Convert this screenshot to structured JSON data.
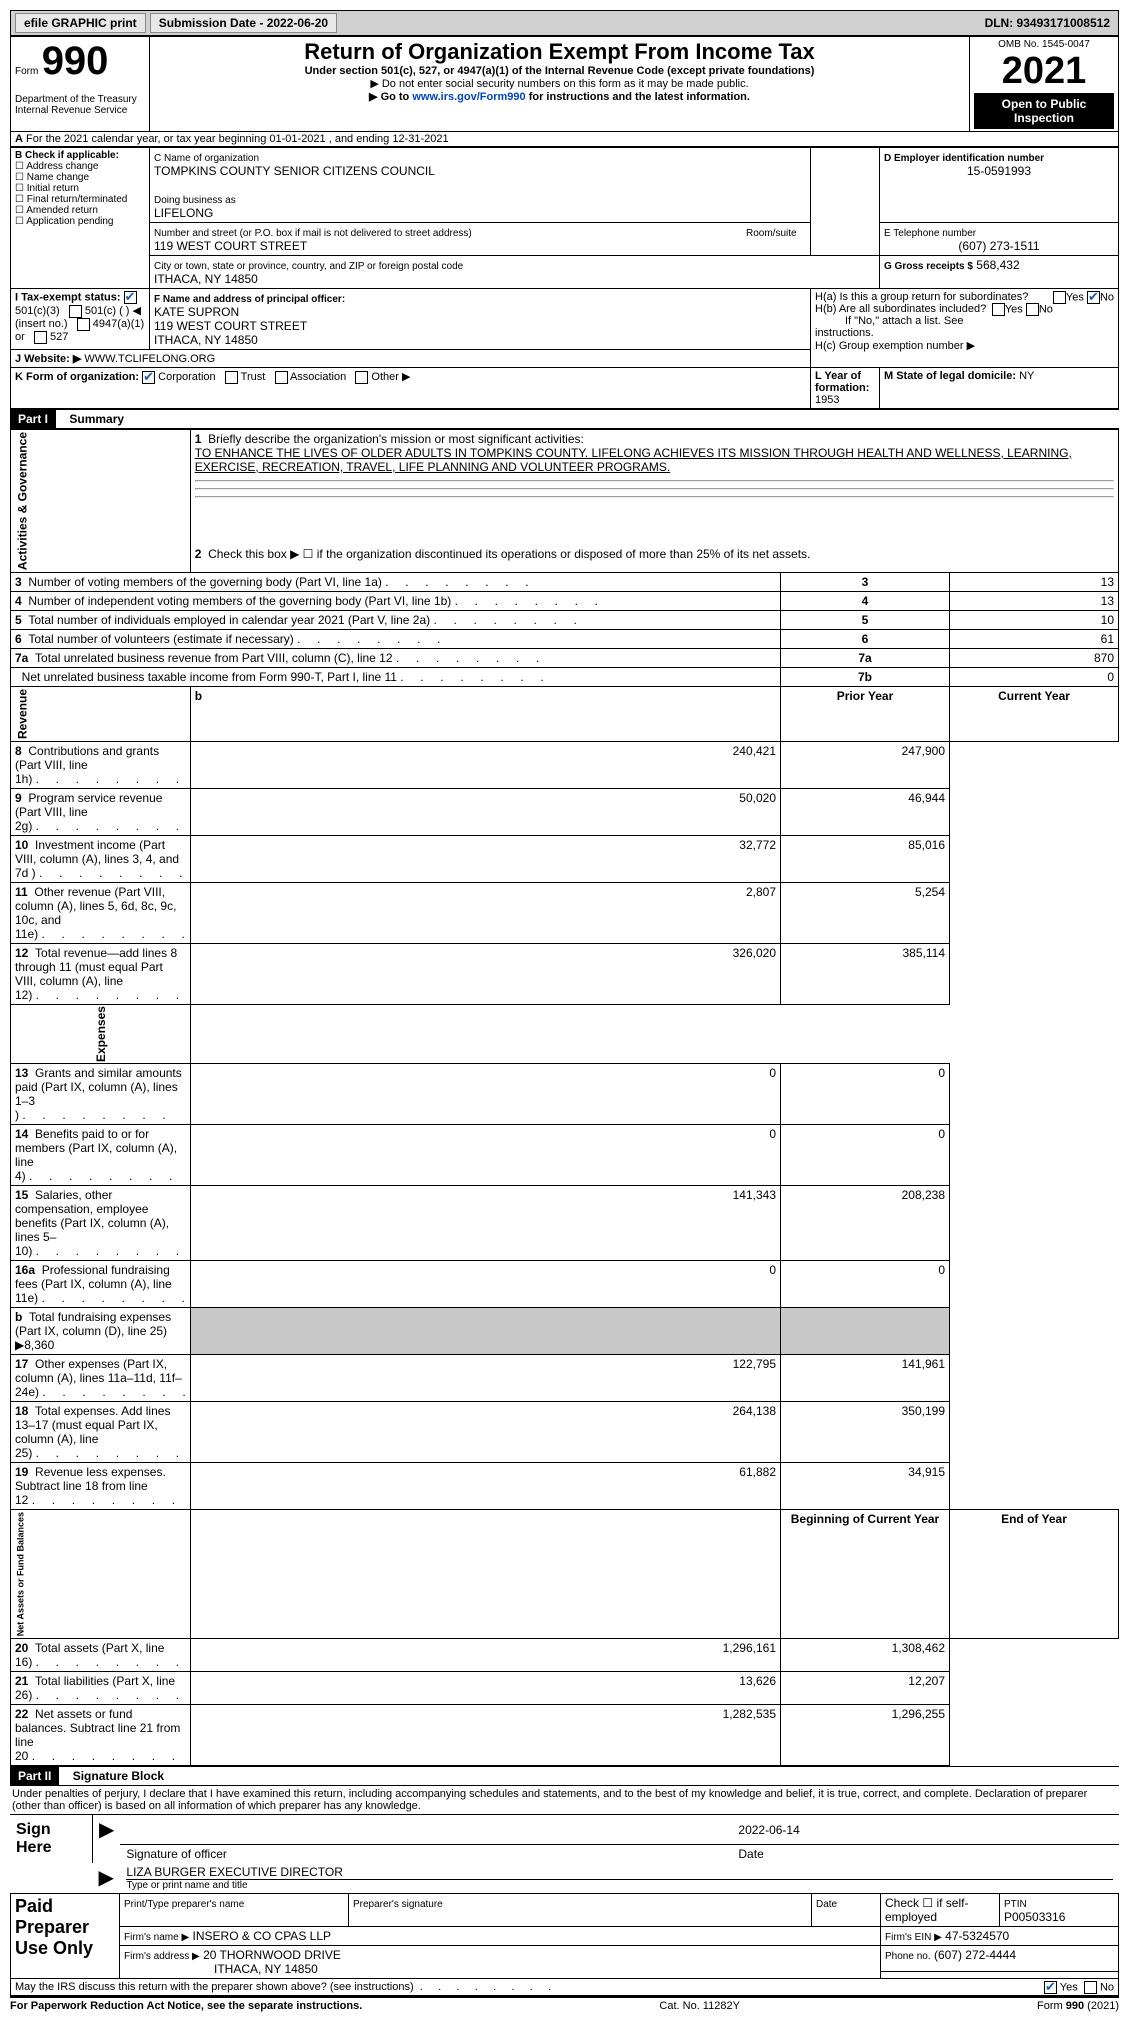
{
  "topbar": {
    "efile": "efile GRAPHIC print",
    "submission_label": "Submission Date - 2022-06-20",
    "dln": "DLN: 93493171008512"
  },
  "header": {
    "form_label": "Form",
    "form_no": "990",
    "dept": "Department of the Treasury\nInternal Revenue Service",
    "title": "Return of Organization Exempt From Income Tax",
    "sub1": "Under section 501(c), 527, or 4947(a)(1) of the Internal Revenue Code (except private foundations)",
    "sub2": "▶ Do not enter social security numbers on this form as it may be made public.",
    "sub3_pre": "▶ Go to ",
    "sub3_link": "www.irs.gov/Form990",
    "sub3_post": " for instructions and the latest information.",
    "omb": "OMB No. 1545-0047",
    "year": "2021",
    "inspection": "Open to Public Inspection"
  },
  "period": {
    "line": "For the 2021 calendar year, or tax year beginning 01-01-2021     , and ending 12-31-2021"
  },
  "boxB": {
    "label": "B Check if applicable:",
    "items": [
      "Address change",
      "Name change",
      "Initial return",
      "Final return/terminated",
      "Amended return",
      "Application pending"
    ]
  },
  "boxC": {
    "name_label": "C Name of organization",
    "name": "TOMPKINS COUNTY SENIOR CITIZENS COUNCIL",
    "dba_label": "Doing business as",
    "dba": "LIFELONG",
    "addr_label": "Number and street (or P.O. box if mail is not delivered to street address)",
    "room_label": "Room/suite",
    "addr": "119 WEST COURT STREET",
    "city_label": "City or town, state or province, country, and ZIP or foreign postal code",
    "city": "ITHACA, NY   14850"
  },
  "boxD": {
    "label": "D Employer identification number",
    "val": "15-0591993"
  },
  "boxE": {
    "label": "E Telephone number",
    "val": "(607) 273-1511"
  },
  "boxG": {
    "label": "G Gross receipts $",
    "val": "568,432"
  },
  "boxF": {
    "label": "F  Name and address of principal officer:",
    "name": "KATE SUPRON",
    "addr1": "119 WEST COURT STREET",
    "addr2": "ITHACA, NY   14850"
  },
  "boxH": {
    "a": "H(a)  Is this a group return for subordinates?",
    "b": "H(b)  Are all subordinates included?",
    "b_note": "If \"No,\" attach a list. See instructions.",
    "c": "H(c)  Group exemption number ▶",
    "yes": "Yes",
    "no": "No"
  },
  "boxI": {
    "label": "I    Tax-exempt status:",
    "opts": [
      "501(c)(3)",
      "501(c) (   ) ◀ (insert no.)",
      "4947(a)(1) or",
      "527"
    ]
  },
  "boxJ": {
    "label": "J    Website: ▶",
    "val": "WWW.TCLIFELONG.ORG"
  },
  "boxK": {
    "label": "K Form of organization:",
    "opts": [
      "Corporation",
      "Trust",
      "Association",
      "Other ▶"
    ]
  },
  "boxL": {
    "label": "L Year of formation:",
    "val": "1953"
  },
  "boxM": {
    "label": "M State of legal domicile:",
    "val": "NY"
  },
  "part1": {
    "hdr": "Part I",
    "title": "Summary",
    "l1_label": "Briefly describe the organization's mission or most significant activities:",
    "l1": "TO ENHANCE THE LIVES OF OLDER ADULTS IN TOMPKINS COUNTY. LIFELONG ACHIEVES ITS MISSION THROUGH HEALTH AND WELLNESS, LEARNING, EXERCISE, RECREATION, TRAVEL, LIFE PLANNING AND VOLUNTEER PROGRAMS.",
    "l2": "Check this box ▶ ☐  if the organization discontinued its operations or disposed of more than 25% of its net assets.",
    "lines": [
      {
        "n": "3",
        "t": "Number of voting members of the governing body (Part VI, line 1a)",
        "box": "3",
        "v": "13"
      },
      {
        "n": "4",
        "t": "Number of independent voting members of the governing body (Part VI, line 1b)",
        "box": "4",
        "v": "13"
      },
      {
        "n": "5",
        "t": "Total number of individuals employed in calendar year 2021 (Part V, line 2a)",
        "box": "5",
        "v": "10"
      },
      {
        "n": "6",
        "t": "Total number of volunteers (estimate if necessary)",
        "box": "6",
        "v": "61"
      },
      {
        "n": "7a",
        "t": "Total unrelated business revenue from Part VIII, column (C), line 12",
        "box": "7a",
        "v": "870"
      },
      {
        "n": " ",
        "t": "Net unrelated business taxable income from Form 990-T, Part I, line 11",
        "box": "7b",
        "v": "0"
      }
    ],
    "prior": "Prior Year",
    "current": "Current Year",
    "rev": [
      {
        "n": "8",
        "t": "Contributions and grants (Part VIII, line 1h)",
        "p": "240,421",
        "c": "247,900"
      },
      {
        "n": "9",
        "t": "Program service revenue (Part VIII, line 2g)",
        "p": "50,020",
        "c": "46,944"
      },
      {
        "n": "10",
        "t": "Investment income (Part VIII, column (A), lines 3, 4, and 7d )",
        "p": "32,772",
        "c": "85,016"
      },
      {
        "n": "11",
        "t": "Other revenue (Part VIII, column (A), lines 5, 6d, 8c, 9c, 10c, and 11e)",
        "p": "2,807",
        "c": "5,254"
      },
      {
        "n": "12",
        "t": "Total revenue—add lines 8 through 11 (must equal Part VIII, column (A), line 12)",
        "p": "326,020",
        "c": "385,114"
      }
    ],
    "exp": [
      {
        "n": "13",
        "t": "Grants and similar amounts paid (Part IX, column (A), lines 1–3 )",
        "p": "0",
        "c": "0"
      },
      {
        "n": "14",
        "t": "Benefits paid to or for members (Part IX, column (A), line 4)",
        "p": "0",
        "c": "0"
      },
      {
        "n": "15",
        "t": "Salaries, other compensation, employee benefits (Part IX, column (A), lines 5–10)",
        "p": "141,343",
        "c": "208,238"
      },
      {
        "n": "16a",
        "t": "Professional fundraising fees (Part IX, column (A), line 11e)",
        "p": "0",
        "c": "0"
      },
      {
        "n": "b",
        "t": "Total fundraising expenses (Part IX, column (D), line 25) ▶8,360",
        "p": "",
        "c": "",
        "grey": true
      },
      {
        "n": "17",
        "t": "Other expenses (Part IX, column (A), lines 11a–11d, 11f–24e)",
        "p": "122,795",
        "c": "141,961"
      },
      {
        "n": "18",
        "t": "Total expenses. Add lines 13–17 (must equal Part IX, column (A), line 25)",
        "p": "264,138",
        "c": "350,199"
      },
      {
        "n": "19",
        "t": "Revenue less expenses. Subtract line 18 from line 12",
        "p": "61,882",
        "c": "34,915"
      }
    ],
    "beg": "Beginning of Current Year",
    "end": "End of Year",
    "net": [
      {
        "n": "20",
        "t": "Total assets (Part X, line 16)",
        "p": "1,296,161",
        "c": "1,308,462"
      },
      {
        "n": "21",
        "t": "Total liabilities (Part X, line 26)",
        "p": "13,626",
        "c": "12,207"
      },
      {
        "n": "22",
        "t": "Net assets or fund balances. Subtract line 21 from line 20",
        "p": "1,282,535",
        "c": "1,296,255"
      }
    ],
    "side_ag": "Activities & Governance",
    "side_rev": "Revenue",
    "side_exp": "Expenses",
    "side_net": "Net Assets or Fund Balances"
  },
  "part2": {
    "hdr": "Part II",
    "title": "Signature Block",
    "decl": "Under penalties of perjury, I declare that I have examined this return, including accompanying schedules and statements, and to the best of my knowledge and belief, it is true, correct, and complete. Declaration of preparer (other than officer) is based on all information of which preparer has any knowledge.",
    "sign_here": "Sign Here",
    "sig_label": "Signature of officer",
    "date": "2022-06-14",
    "date_label": "Date",
    "name": "LIZA BURGER EXECUTIVE DIRECTOR",
    "name_label": "Type or print name and title",
    "paid": "Paid Preparer Use Only",
    "prep_name_label": "Print/Type preparer's name",
    "prep_sig_label": "Preparer's signature",
    "check_label": "Check ☐ if self-employed",
    "ptin_label": "PTIN",
    "ptin": "P00503316",
    "firm_name_label": "Firm's name   ▶",
    "firm_name": "INSERO & CO CPAS LLP",
    "firm_ein_label": "Firm's EIN ▶",
    "firm_ein": "47-5324570",
    "firm_addr_label": "Firm's address ▶",
    "firm_addr": "20 THORNWOOD DRIVE",
    "firm_city": "ITHACA, NY   14850",
    "phone_label": "Phone no.",
    "phone": "(607) 272-4444",
    "discuss": "May the IRS discuss this return with the preparer shown above? (see instructions)",
    "yes": "Yes",
    "no": "No"
  },
  "footer": {
    "left": "For Paperwork Reduction Act Notice, see the separate instructions.",
    "mid": "Cat. No. 11282Y",
    "right": "Form 990 (2021)"
  }
}
